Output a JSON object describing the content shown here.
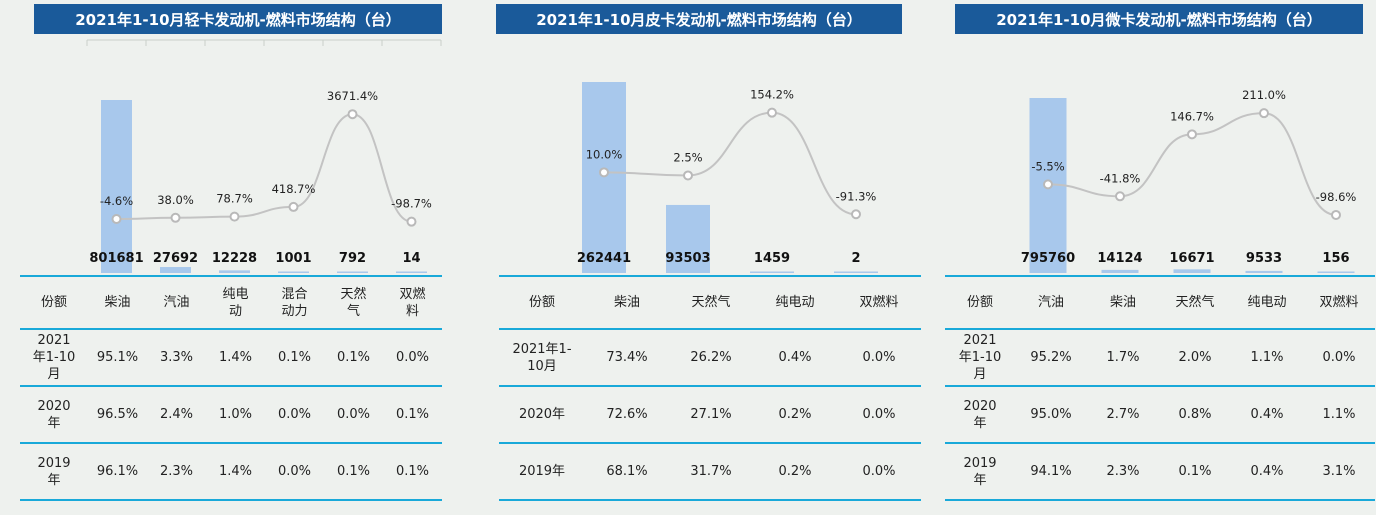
{
  "panels": [
    {
      "title": "2021年1-10月轻卡发动机-燃料市场结构（台）",
      "table": {
        "corner": "份额",
        "headers": [
          "柴油",
          "汽油",
          "纯电动",
          "混合动力",
          "天然气",
          "双燃料"
        ],
        "rows": [
          {
            "label": "2021年1-10月",
            "cells": [
              "95.1%",
              "3.3%",
              "1.4%",
              "0.1%",
              "0.1%",
              "0.0%"
            ]
          },
          {
            "label": "2020年",
            "cells": [
              "96.5%",
              "2.4%",
              "1.0%",
              "0.0%",
              "0.0%",
              "0.1%"
            ]
          },
          {
            "label": "2019年",
            "cells": [
              "96.1%",
              "2.3%",
              "1.4%",
              "0.0%",
              "0.1%",
              "0.1%"
            ]
          }
        ]
      }
    },
    {
      "title": "2021年1-10月皮卡发动机-燃料市场结构（台）",
      "table": {
        "corner": "份额",
        "headers": [
          "柴油",
          "天然气",
          "纯电动",
          "双燃料"
        ],
        "rows": [
          {
            "label": "2021年1-10月",
            "cells": [
              "73.4%",
              "26.2%",
              "0.4%",
              "0.0%"
            ]
          },
          {
            "label": "2020年",
            "cells": [
              "72.6%",
              "27.1%",
              "0.2%",
              "0.0%"
            ]
          },
          {
            "label": "2019年",
            "cells": [
              "68.1%",
              "31.7%",
              "0.2%",
              "0.0%"
            ]
          }
        ]
      }
    },
    {
      "title": "2021年1-10月微卡发动机-燃料市场结构（台）",
      "table": {
        "corner": "份额",
        "headers": [
          "汽油",
          "柴油",
          "天然气",
          "纯电动",
          "双燃料"
        ],
        "rows": [
          {
            "label": "2021年1-10月",
            "cells": [
              "95.2%",
              "1.7%",
              "2.0%",
              "1.1%",
              "0.0%"
            ]
          },
          {
            "label": "2020年",
            "cells": [
              "95.0%",
              "2.7%",
              "0.8%",
              "0.4%",
              "1.1%"
            ]
          },
          {
            "label": "2019年",
            "cells": [
              "94.1%",
              "2.3%",
              "0.1%",
              "0.4%",
              "3.1%"
            ]
          }
        ]
      }
    }
  ],
  "chart_data": [
    {
      "type": "bar",
      "title": "2021年1-10月轻卡发动机-燃料市场结构（台）",
      "categories": [
        "柴油",
        "汽油",
        "纯电动",
        "混合动力",
        "天然气",
        "双燃料"
      ],
      "series": [
        {
          "values": [
            801681,
            27692,
            12228,
            1001,
            792,
            14
          ],
          "value_labels": [
            "801681",
            "27692",
            "12228",
            "1001",
            "792",
            "14"
          ]
        },
        {
          "type": "line",
          "values": [
            -4.6,
            38.0,
            78.7,
            418.7,
            3671.4,
            -98.7
          ],
          "value_labels": [
            "-4.6%",
            "38.0%",
            "78.7%",
            "418.7%",
            "3671.4%",
            "-98.7%"
          ]
        }
      ],
      "colors": {
        "bar": "#a8c8ec",
        "line": "#c3c3c3"
      }
    },
    {
      "type": "bar",
      "title": "2021年1-10月皮卡发动机-燃料市场结构（台）",
      "categories": [
        "柴油",
        "天然气",
        "纯电动",
        "双燃料"
      ],
      "series": [
        {
          "values": [
            262441,
            93503,
            1459,
            2
          ],
          "value_labels": [
            "262441",
            "93503",
            "1459",
            "2"
          ]
        },
        {
          "type": "line",
          "values": [
            10.0,
            2.5,
            154.2,
            -91.3
          ],
          "value_labels": [
            "10.0%",
            "2.5%",
            "154.2%",
            "-91.3%"
          ]
        }
      ],
      "colors": {
        "bar": "#a8c8ec",
        "line": "#c3c3c3"
      }
    },
    {
      "type": "bar",
      "title": "2021年1-10月微卡发动机-燃料市场结构（台）",
      "categories": [
        "汽油",
        "柴油",
        "天然气",
        "纯电动",
        "双燃料"
      ],
      "series": [
        {
          "values": [
            795760,
            14124,
            16671,
            9533,
            156
          ],
          "value_labels": [
            "795760",
            "14124",
            "16671",
            "9533",
            "156"
          ]
        },
        {
          "type": "line",
          "values": [
            -5.5,
            -41.8,
            146.7,
            211.0,
            -98.6
          ],
          "value_labels": [
            "-5.5%",
            "-41.8%",
            "146.7%",
            "211.0%",
            "-98.6%"
          ]
        }
      ],
      "colors": {
        "bar": "#a8c8ec",
        "line": "#c3c3c3"
      }
    }
  ]
}
